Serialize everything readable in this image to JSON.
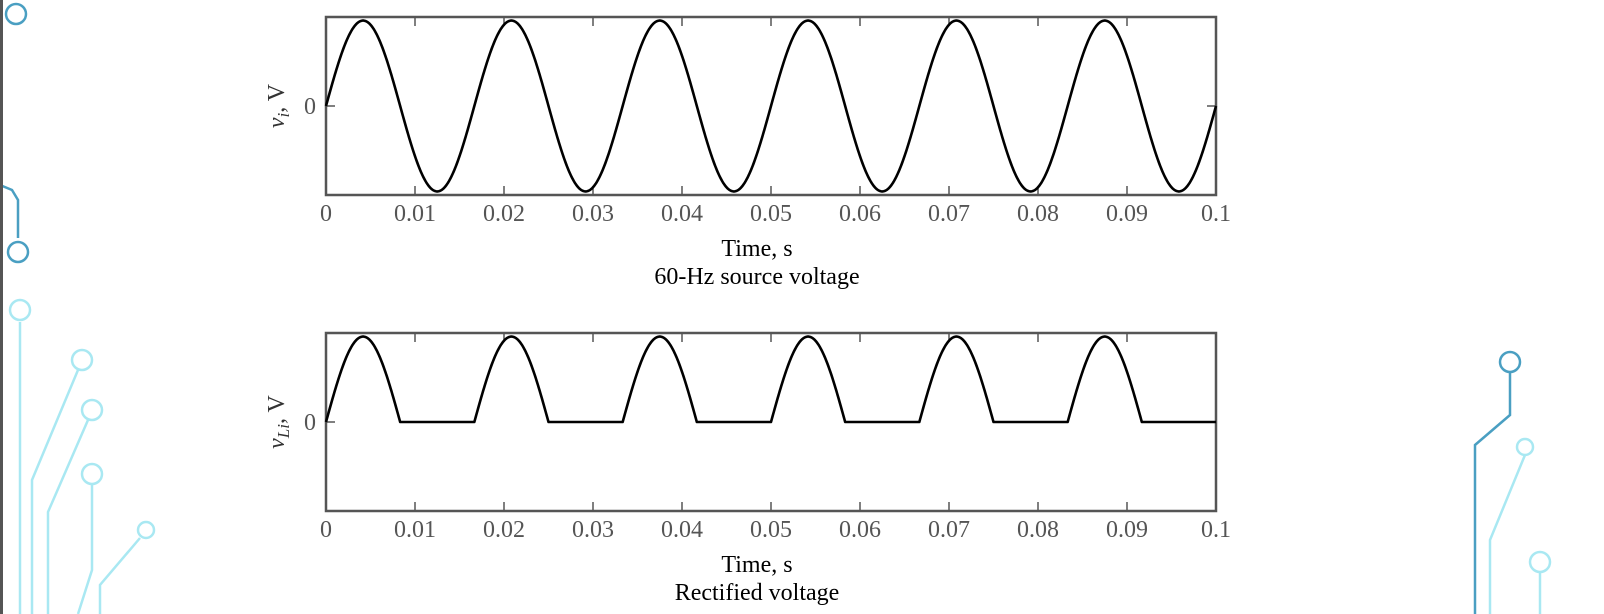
{
  "decoration": {
    "line_color": "#a9e8f2",
    "dark_color": "#4a9fc2"
  },
  "chart_data": [
    {
      "type": "line",
      "title": "60-Hz source voltage",
      "xlabel": "Time, s",
      "ylabel": {
        "var": "v",
        "sub": "i",
        "unit": ", V"
      },
      "xlim": [
        0,
        0.1
      ],
      "ylim": [
        -1,
        1
      ],
      "x_ticks": [
        "0",
        "0.01",
        "0.02",
        "0.03",
        "0.04",
        "0.05",
        "0.06",
        "0.07",
        "0.08",
        "0.09",
        "0.1"
      ],
      "y_ticks": [
        "0"
      ],
      "series": [
        {
          "function": "sine",
          "frequency_hz": 60,
          "amplitude": 1,
          "rectified": false
        }
      ],
      "grid": false
    },
    {
      "type": "line",
      "title": "Rectified voltage",
      "xlabel": "Time, s",
      "ylabel": {
        "var": "v",
        "sub": "Li",
        "unit": ", V"
      },
      "xlim": [
        0,
        0.1
      ],
      "ylim": [
        -1,
        1
      ],
      "x_ticks": [
        "0",
        "0.01",
        "0.02",
        "0.03",
        "0.04",
        "0.05",
        "0.06",
        "0.07",
        "0.08",
        "0.09",
        "0.1"
      ],
      "y_ticks": [
        "0"
      ],
      "series": [
        {
          "function": "sine",
          "frequency_hz": 60,
          "amplitude": 1,
          "rectified": true
        }
      ],
      "grid": false
    }
  ]
}
